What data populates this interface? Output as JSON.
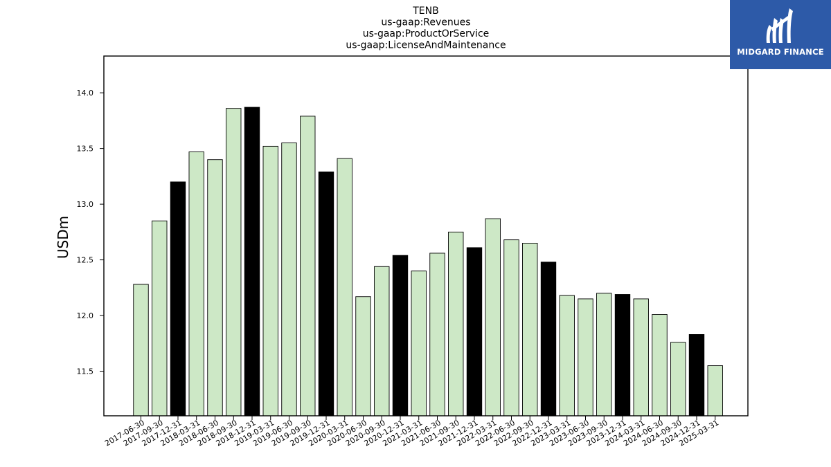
{
  "chart_data": {
    "type": "bar",
    "title_lines": [
      "TENB",
      "us-gaap:Revenues",
      "us-gaap:ProductOrService",
      "us-gaap:LicenseAndMaintenance"
    ],
    "xlabel": "",
    "ylabel": "USDm",
    "ylim": [
      11.1,
      14.33
    ],
    "yticks": [
      11.5,
      12.0,
      12.5,
      13.0,
      13.5,
      14.0
    ],
    "ytick_labels": [
      "11.5",
      "12.0",
      "12.5",
      "13.0",
      "13.5",
      "14.0"
    ],
    "grid": false,
    "categories": [
      "2017-06-30",
      "2017-09-30",
      "2017-12-31",
      "2018-03-31",
      "2018-06-30",
      "2018-09-30",
      "2018-12-31",
      "2019-03-31",
      "2019-06-30",
      "2019-09-30",
      "2019-12-31",
      "2020-03-31",
      "2020-06-30",
      "2020-09-30",
      "2020-12-31",
      "2021-03-31",
      "2021-06-30",
      "2021-09-30",
      "2021-12-31",
      "2022-03-31",
      "2022-06-30",
      "2022-09-30",
      "2022-12-31",
      "2023-03-31",
      "2023-06-30",
      "2023-09-30",
      "2023-12-31",
      "2024-03-31",
      "2024-06-30",
      "2024-09-30",
      "2024-12-31",
      "2025-03-31"
    ],
    "values": [
      12.28,
      12.85,
      13.2,
      13.47,
      13.4,
      13.86,
      13.87,
      13.52,
      13.55,
      13.79,
      13.29,
      13.41,
      12.17,
      12.44,
      12.54,
      12.4,
      12.56,
      12.75,
      12.61,
      12.87,
      12.68,
      12.65,
      12.48,
      12.18,
      12.15,
      12.2,
      12.19,
      12.15,
      12.01,
      11.76,
      11.83,
      11.55
    ],
    "bar_colors": {
      "quarter": "#cde8c6",
      "year_end": "#000000",
      "edge": "#000000"
    },
    "highlight_categories": [
      "2017-12-31",
      "2018-12-31",
      "2019-12-31",
      "2020-12-31",
      "2021-12-31",
      "2022-12-31",
      "2023-12-31",
      "2024-12-31"
    ]
  },
  "logo": {
    "text": "MIDGARD FINANCE",
    "background": "#2d5aa8",
    "icon": "midgard-m-logo-icon"
  }
}
